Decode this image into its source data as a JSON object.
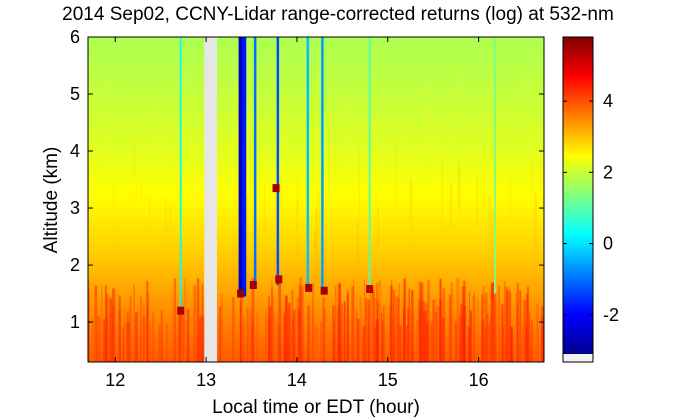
{
  "chart_data": {
    "type": "heatmap",
    "title": "2014 Sep02, CCNY-Lidar range-corrected returns (log) at 532-nm",
    "xlabel": "Local time or EDT (hour)",
    "ylabel": "Altitude (km)",
    "xlim": [
      11.7,
      16.72
    ],
    "ylim": [
      0.3,
      6.0
    ],
    "x_ticks": [
      "12",
      "13",
      "14",
      "15",
      "16"
    ],
    "y_ticks": [
      "1",
      "2",
      "3",
      "4",
      "5",
      "6"
    ],
    "colorbar": {
      "colormap": "jet",
      "range": [
        -3.1,
        5.8
      ],
      "ticks": [
        "-2",
        "0",
        "2",
        "4"
      ]
    },
    "data_gap": {
      "x_start": 12.98,
      "x_end": 13.12
    },
    "background_profile": [
      {
        "altitude_km": 0.3,
        "value": 3.9
      },
      {
        "altitude_km": 1.3,
        "value": 3.4
      },
      {
        "altitude_km": 2.2,
        "value": 2.9
      },
      {
        "altitude_km": 3.0,
        "value": 2.55
      },
      {
        "altitude_km": 4.0,
        "value": 2.2
      },
      {
        "altitude_km": 5.0,
        "value": 1.95
      },
      {
        "altitude_km": 6.0,
        "value": 1.75
      }
    ],
    "cloud_screened_columns": [
      {
        "x": 12.72,
        "y_bottom": 1.15,
        "value": 0.3
      },
      {
        "x": 13.38,
        "y_bottom": 1.45,
        "value": -2.5
      },
      {
        "x": 13.42,
        "y_bottom": 1.45,
        "value": -1.8
      },
      {
        "x": 13.54,
        "y_bottom": 1.6,
        "value": -1.0
      },
      {
        "x": 13.79,
        "y_bottom": 1.65,
        "value": -1.3
      },
      {
        "x": 14.12,
        "y_bottom": 1.6,
        "value": -0.3
      },
      {
        "x": 14.28,
        "y_bottom": 1.55,
        "value": -0.6
      },
      {
        "x": 14.8,
        "y_bottom": 1.6,
        "value": 0.9
      },
      {
        "x": 16.18,
        "y_bottom": 1.5,
        "value": 1.3
      }
    ],
    "cloud_base_patches": [
      {
        "x": 12.72,
        "y": 1.2,
        "value": 5.4
      },
      {
        "x": 13.38,
        "y": 1.5,
        "value": 5.6
      },
      {
        "x": 13.52,
        "y": 1.65,
        "value": 5.5
      },
      {
        "x": 13.77,
        "y": 3.35,
        "value": 5.5
      },
      {
        "x": 13.8,
        "y": 1.75,
        "value": 5.3
      },
      {
        "x": 14.13,
        "y": 1.6,
        "value": 5.4
      },
      {
        "x": 14.3,
        "y": 1.55,
        "value": 5.5
      },
      {
        "x": 14.8,
        "y": 1.58,
        "value": 5.2
      }
    ]
  }
}
